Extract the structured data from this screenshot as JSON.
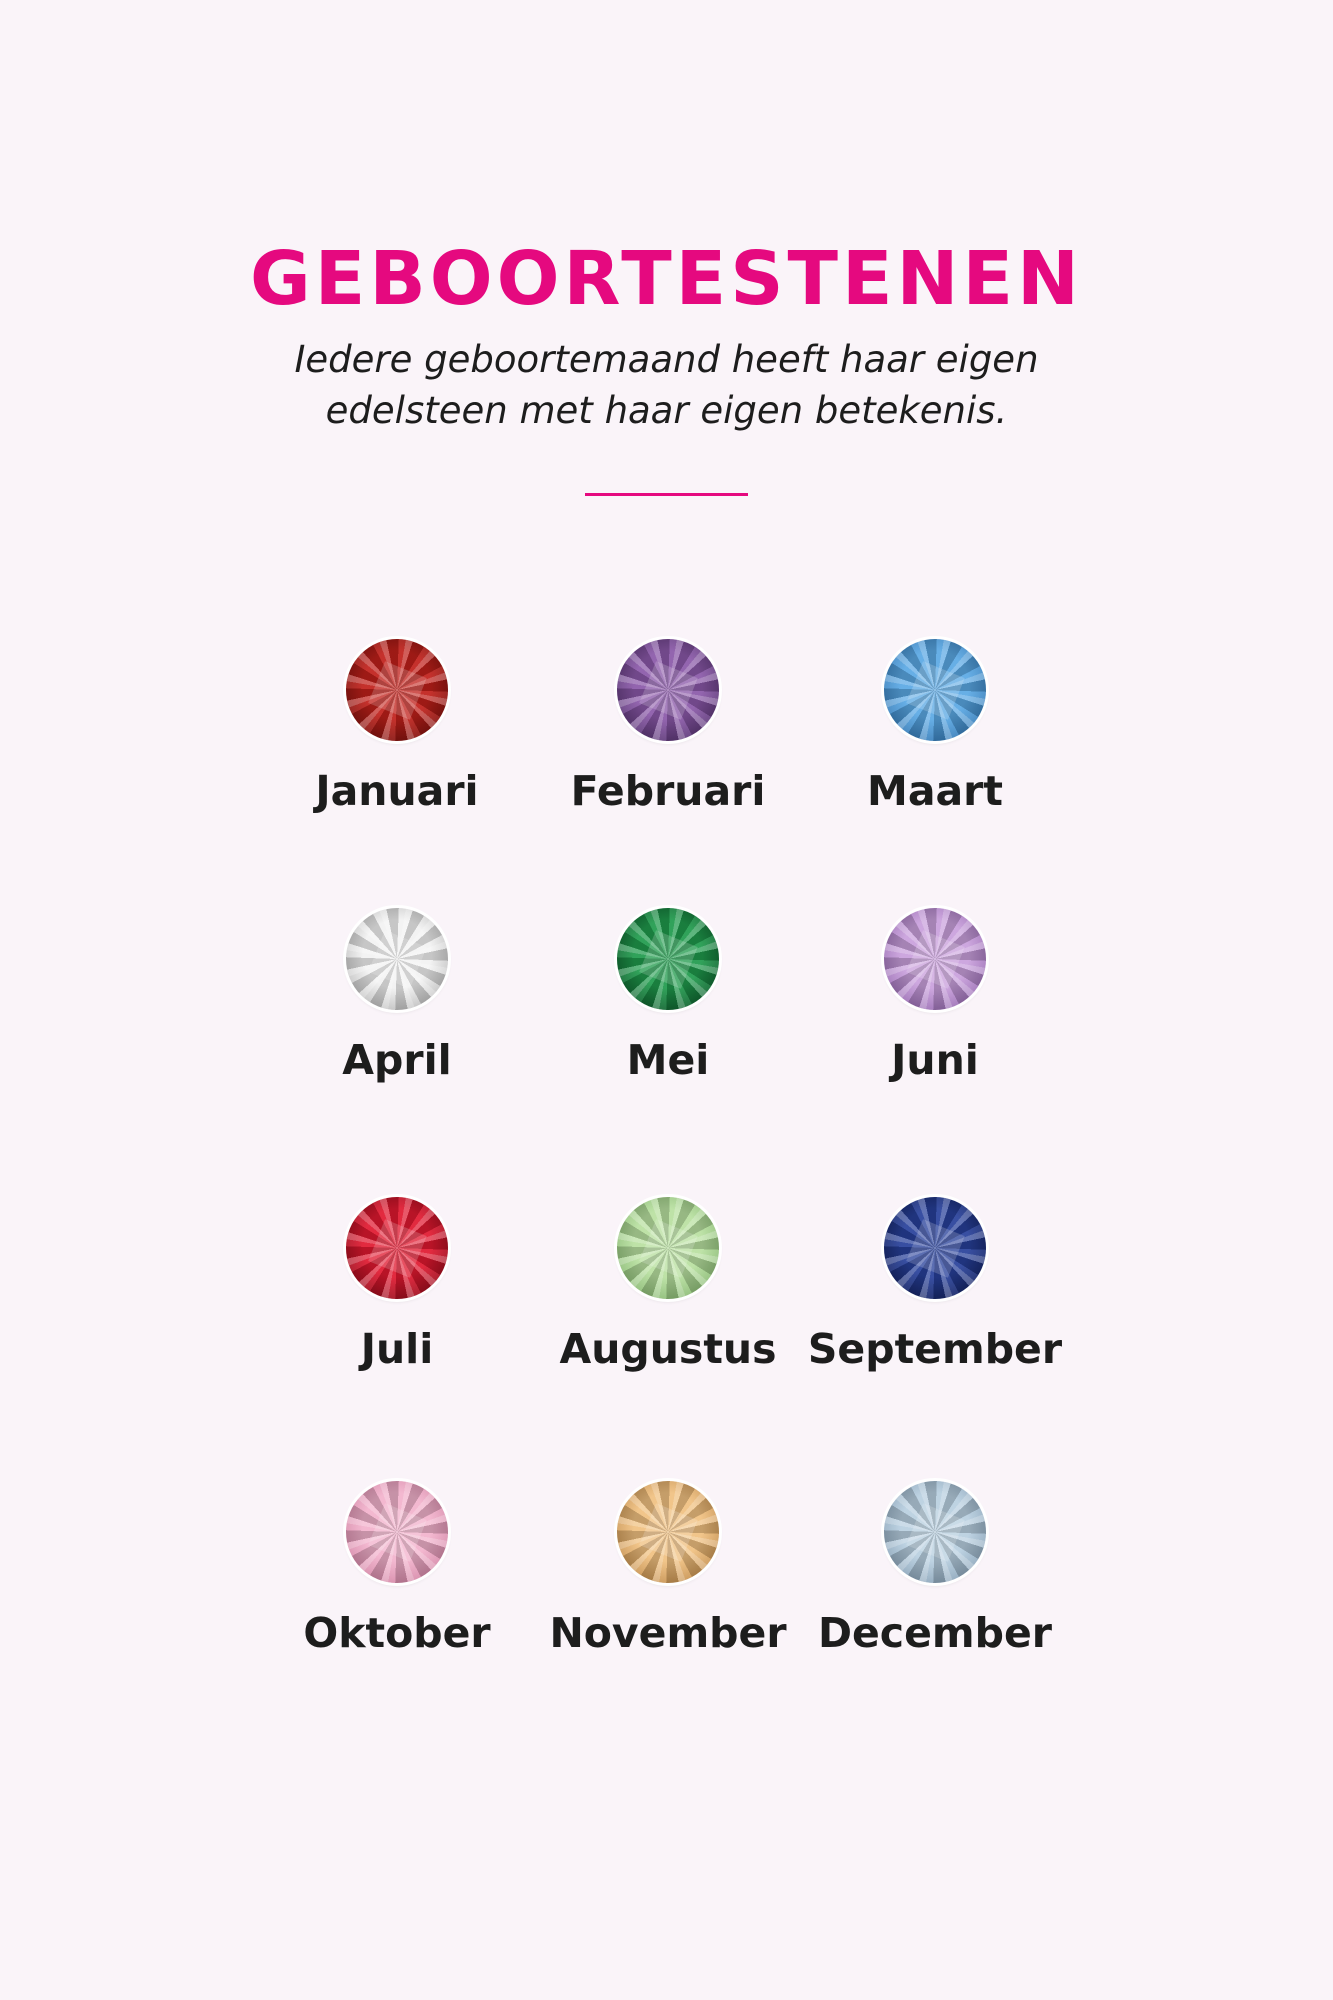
{
  "header": {
    "title": "GEBOORTESTENEN",
    "subtitle_line1": "Iedere geboortemaand heeft haar eigen",
    "subtitle_line2": "edelsteen met haar eigen betekenis."
  },
  "colors": {
    "accent": "#e5097f",
    "background": "#faf4f9",
    "text": "#1d1d1d"
  },
  "stones": [
    {
      "month": "Januari",
      "color": "#c0201a",
      "dark": "#5a0b08"
    },
    {
      "month": "Februari",
      "color": "#8a58a8",
      "dark": "#3e2356"
    },
    {
      "month": "Maart",
      "color": "#5aa8e4",
      "dark": "#1f5f9a"
    },
    {
      "month": "April",
      "color": "#f2f2f2",
      "dark": "#9a9a9a"
    },
    {
      "month": "Mei",
      "color": "#1f9a4c",
      "dark": "#063d1c"
    },
    {
      "month": "Juni",
      "color": "#c9a0dc",
      "dark": "#7b4c99"
    },
    {
      "month": "Juli",
      "color": "#e0182f",
      "dark": "#6e0712"
    },
    {
      "month": "Augustus",
      "color": "#b8e0a0",
      "dark": "#6aa055"
    },
    {
      "month": "September",
      "color": "#27409a",
      "dark": "#0b1442"
    },
    {
      "month": "Oktober",
      "color": "#f2b2cc",
      "dark": "#c06a8e"
    },
    {
      "month": "November",
      "color": "#f0c080",
      "dark": "#a9712e"
    },
    {
      "month": "December",
      "color": "#b8cfe0",
      "dark": "#6c879e"
    }
  ]
}
